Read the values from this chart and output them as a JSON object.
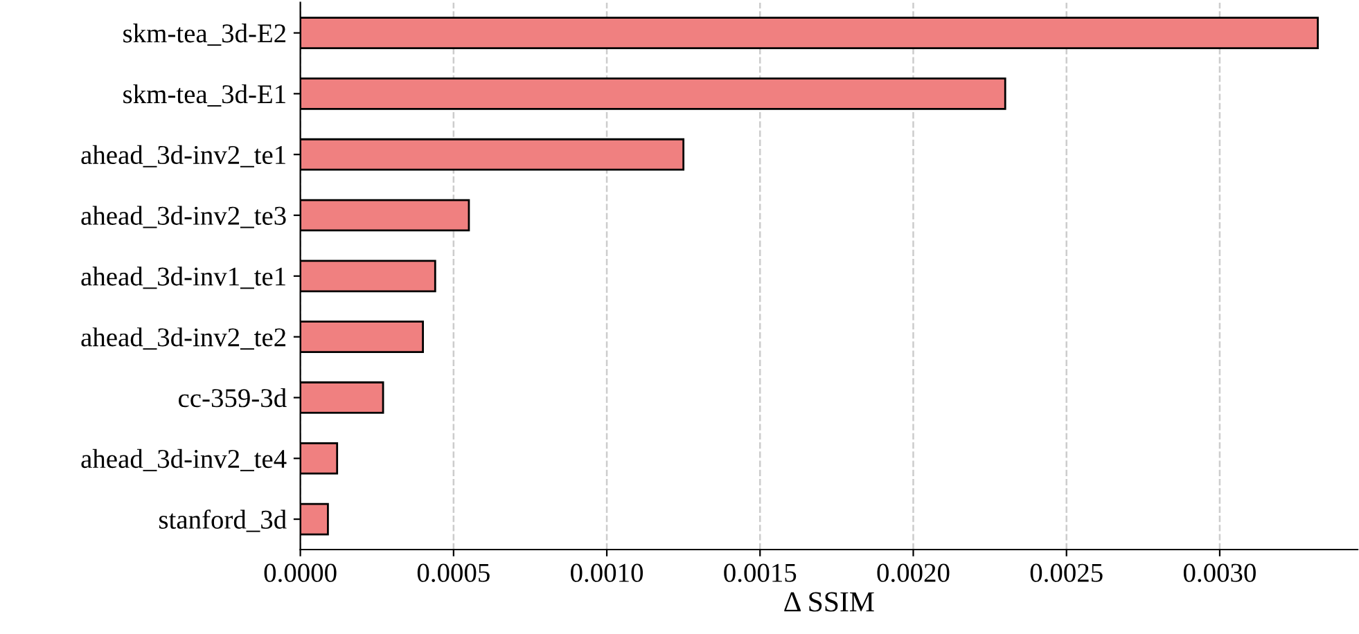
{
  "chart_data": {
    "type": "bar",
    "orientation": "horizontal",
    "xlabel": "Δ SSIM",
    "categories": [
      "skm-tea_3d-E2",
      "skm-tea_3d-E1",
      "ahead_3d-inv2_te1",
      "ahead_3d-inv2_te3",
      "ahead_3d-inv1_te1",
      "ahead_3d-inv2_te2",
      "cc-359-3d",
      "ahead_3d-inv2_te4",
      "stanford_3d"
    ],
    "values": [
      0.00332,
      0.0023,
      0.00125,
      0.00055,
      0.00044,
      0.0004,
      0.00027,
      0.00012,
      9e-05
    ],
    "color": "#f08080",
    "xlim": [
      0,
      0.00345
    ],
    "xticks": [
      {
        "value": 0,
        "label": "0.0000"
      },
      {
        "value": 0.0005,
        "label": "0.0005"
      },
      {
        "value": 0.001,
        "label": "0.0010"
      },
      {
        "value": 0.0015,
        "label": "0.0015"
      },
      {
        "value": 0.002,
        "label": "0.0020"
      },
      {
        "value": 0.0025,
        "label": "0.0025"
      },
      {
        "value": 0.003,
        "label": "0.0030"
      }
    ],
    "grid": "x"
  }
}
